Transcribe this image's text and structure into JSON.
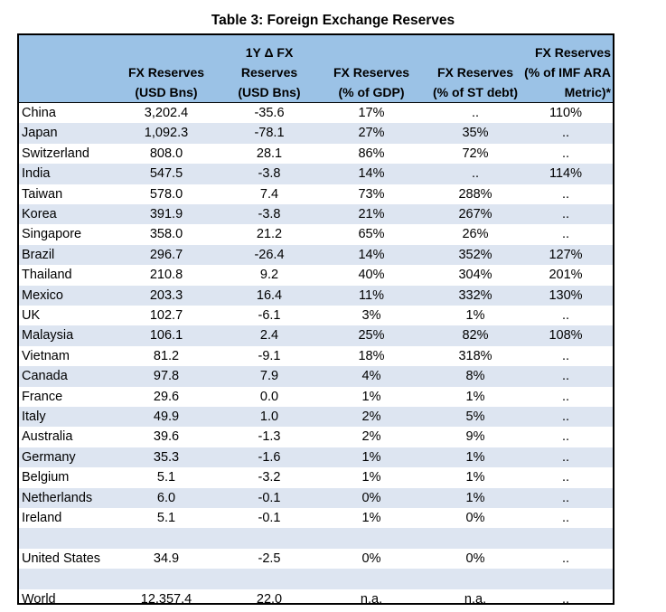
{
  "title": "Table 3: Foreign Exchange Reserves",
  "header": [
    [
      "FX Reserves",
      "(USD Bns)"
    ],
    [
      "1Y Δ FX",
      "Reserves",
      "(USD Bns)"
    ],
    [
      "FX Reserves",
      "(% of GDP)"
    ],
    [
      "FX Reserves",
      "(% of ST debt)"
    ],
    [
      "FX Reserves",
      "(% of IMF ARA",
      "Metric)*"
    ]
  ],
  "rows": [
    {
      "country": "China",
      "reserves": "3,202.4",
      "change": "-35.6",
      "gdp": "17%",
      "st_debt": "..",
      "imf": "110%"
    },
    {
      "country": "Japan",
      "reserves": "1,092.3",
      "change": "-78.1",
      "gdp": "27%",
      "st_debt": "35%",
      "imf": ".."
    },
    {
      "country": "Switzerland",
      "reserves": "808.0",
      "change": "28.1",
      "gdp": "86%",
      "st_debt": "72%",
      "imf": ".."
    },
    {
      "country": "India",
      "reserves": "547.5",
      "change": "-3.8",
      "gdp": "14%",
      "st_debt": "..",
      "imf": "114%"
    },
    {
      "country": "Taiwan",
      "reserves": "578.0",
      "change": "7.4",
      "gdp": "73%",
      "st_debt": "288%",
      "imf": ".."
    },
    {
      "country": "Korea",
      "reserves": "391.9",
      "change": "-3.8",
      "gdp": "21%",
      "st_debt": "267%",
      "imf": ".."
    },
    {
      "country": "Singapore",
      "reserves": "358.0",
      "change": "21.2",
      "gdp": "65%",
      "st_debt": "26%",
      "imf": ".."
    },
    {
      "country": "Brazil",
      "reserves": "296.7",
      "change": "-26.4",
      "gdp": "14%",
      "st_debt": "352%",
      "imf": "127%"
    },
    {
      "country": "Thailand",
      "reserves": "210.8",
      "change": "9.2",
      "gdp": "40%",
      "st_debt": "304%",
      "imf": "201%"
    },
    {
      "country": "Mexico",
      "reserves": "203.3",
      "change": "16.4",
      "gdp": "11%",
      "st_debt": "332%",
      "imf": "130%"
    },
    {
      "country": "UK",
      "reserves": "102.7",
      "change": "-6.1",
      "gdp": "3%",
      "st_debt": "1%",
      "imf": ".."
    },
    {
      "country": "Malaysia",
      "reserves": "106.1",
      "change": "2.4",
      "gdp": "25%",
      "st_debt": "82%",
      "imf": "108%"
    },
    {
      "country": "Vietnam",
      "reserves": "81.2",
      "change": "-9.1",
      "gdp": "18%",
      "st_debt": "318%",
      "imf": ".."
    },
    {
      "country": "Canada",
      "reserves": "97.8",
      "change": "7.9",
      "gdp": "4%",
      "st_debt": "8%",
      "imf": ".."
    },
    {
      "country": "France",
      "reserves": "29.6",
      "change": "0.0",
      "gdp": "1%",
      "st_debt": "1%",
      "imf": ".."
    },
    {
      "country": "Italy",
      "reserves": "49.9",
      "change": "1.0",
      "gdp": "2%",
      "st_debt": "5%",
      "imf": ".."
    },
    {
      "country": "Australia",
      "reserves": "39.6",
      "change": "-1.3",
      "gdp": "2%",
      "st_debt": "9%",
      "imf": ".."
    },
    {
      "country": "Germany",
      "reserves": "35.3",
      "change": "-1.6",
      "gdp": "1%",
      "st_debt": "1%",
      "imf": ".."
    },
    {
      "country": "Belgium",
      "reserves": "5.1",
      "change": "-3.2",
      "gdp": "1%",
      "st_debt": "1%",
      "imf": ".."
    },
    {
      "country": "Netherlands",
      "reserves": "6.0",
      "change": "-0.1",
      "gdp": "0%",
      "st_debt": "1%",
      "imf": ".."
    },
    {
      "country": "Ireland",
      "reserves": "5.1",
      "change": "-0.1",
      "gdp": "1%",
      "st_debt": "0%",
      "imf": ".."
    },
    {
      "blank": true
    },
    {
      "country": "United States",
      "reserves": "34.9",
      "change": "-2.5",
      "gdp": "0%",
      "st_debt": "0%",
      "imf": ".."
    },
    {
      "blank": true
    },
    {
      "country": "World",
      "reserves": "12,357.4",
      "change": "22.0",
      "gdp": "n.a.",
      "st_debt": "n.a.",
      "imf": ".."
    }
  ]
}
